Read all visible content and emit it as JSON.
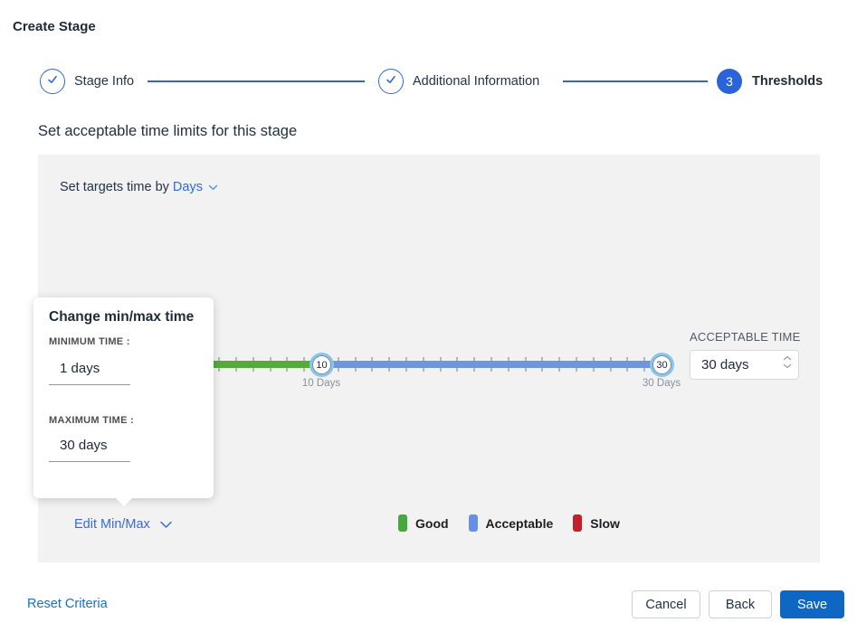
{
  "page": {
    "title": "Create Stage"
  },
  "stepper": {
    "steps": [
      {
        "label": "Stage Info",
        "state": "complete"
      },
      {
        "label": "Additional Information",
        "state": "complete"
      },
      {
        "label": "Thresholds",
        "state": "active",
        "number": "3"
      }
    ]
  },
  "section_heading": "Set acceptable time limits for this stage",
  "targets_bar": {
    "prefix": "Set targets time by",
    "unit_value": "Days"
  },
  "slider": {
    "min_handle_value": "10",
    "min_handle_label": "10 Days",
    "max_handle_value": "30",
    "max_handle_label": "30 Days",
    "track_colors": {
      "good": "#54ad39",
      "acceptable": "#6e96dd"
    }
  },
  "acceptable_time": {
    "label": "ACCEPTABLE TIME",
    "value": "30 days"
  },
  "minmax_popup": {
    "title": "Change min/max time",
    "minimum_label": "MINIMUM TIME :",
    "minimum_value": "1 days",
    "maximum_label": "MAXIMUM TIME :",
    "maximum_value": "30 days"
  },
  "edit_minmax_label": "Edit Min/Max",
  "legend": [
    {
      "label": "Good",
      "color": "#47a83f"
    },
    {
      "label": "Acceptable",
      "color": "#6691e2"
    },
    {
      "label": "Slow",
      "color": "#c3202c"
    }
  ],
  "footer": {
    "reset_label": "Reset Criteria",
    "cancel_label": "Cancel",
    "back_label": "Back",
    "save_label": "Save"
  }
}
